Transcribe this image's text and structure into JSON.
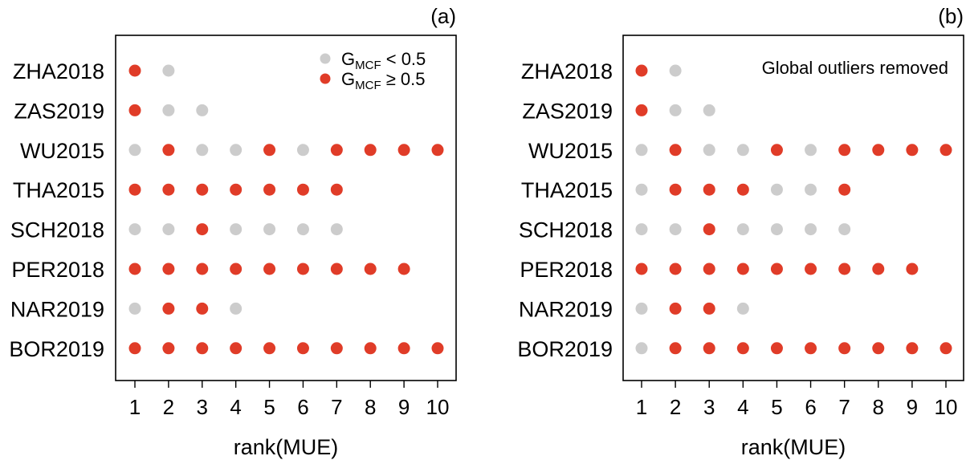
{
  "chart_data": [
    {
      "type": "scatter",
      "panel_label": "(a)",
      "xlabel": "rank(MUE)",
      "x_ticks": [
        "1",
        "2",
        "3",
        "4",
        "5",
        "6",
        "7",
        "8",
        "9",
        "10"
      ],
      "xlim": [
        1,
        10
      ],
      "categories": [
        "ZHA2018",
        "ZAS2019",
        "WU2015",
        "THA2015",
        "SCH2018",
        "PER2018",
        "NAR2019",
        "BOR2019"
      ],
      "legend": {
        "placement": "top-right",
        "items": [
          {
            "base": "G",
            "sub": "MCF",
            "rel": " < 0.5",
            "color": "#cccccc"
          },
          {
            "base": "G",
            "sub": "MCF",
            "rel": " ≥ 0.5",
            "color": "#e03c28"
          }
        ]
      },
      "note": "",
      "rows": [
        {
          "label": "ZHA2018",
          "points": [
            1,
            0
          ]
        },
        {
          "label": "ZAS2019",
          "points": [
            1,
            0,
            0
          ]
        },
        {
          "label": "WU2015",
          "points": [
            0,
            1,
            0,
            0,
            1,
            0,
            1,
            1,
            1,
            1
          ]
        },
        {
          "label": "THA2015",
          "points": [
            1,
            1,
            1,
            1,
            1,
            1,
            1
          ]
        },
        {
          "label": "SCH2018",
          "points": [
            0,
            0,
            1,
            0,
            0,
            0,
            0
          ]
        },
        {
          "label": "PER2018",
          "points": [
            1,
            1,
            1,
            1,
            1,
            1,
            1,
            1,
            1
          ]
        },
        {
          "label": "NAR2019",
          "points": [
            0,
            1,
            1,
            0
          ]
        },
        {
          "label": "BOR2019",
          "points": [
            1,
            1,
            1,
            1,
            1,
            1,
            1,
            1,
            1,
            1
          ]
        }
      ]
    },
    {
      "type": "scatter",
      "panel_label": "(b)",
      "xlabel": "rank(MUE)",
      "x_ticks": [
        "1",
        "2",
        "3",
        "4",
        "5",
        "6",
        "7",
        "8",
        "9",
        "10"
      ],
      "xlim": [
        1,
        10
      ],
      "categories": [
        "ZHA2018",
        "ZAS2019",
        "WU2015",
        "THA2015",
        "SCH2018",
        "PER2018",
        "NAR2019",
        "BOR2019"
      ],
      "legend": null,
      "note": "Global outliers removed",
      "rows": [
        {
          "label": "ZHA2018",
          "points": [
            1,
            0
          ]
        },
        {
          "label": "ZAS2019",
          "points": [
            1,
            0,
            0
          ]
        },
        {
          "label": "WU2015",
          "points": [
            0,
            1,
            0,
            0,
            1,
            0,
            1,
            1,
            1,
            1
          ]
        },
        {
          "label": "THA2015",
          "points": [
            0,
            1,
            1,
            1,
            0,
            0,
            1
          ]
        },
        {
          "label": "SCH2018",
          "points": [
            0,
            0,
            1,
            0,
            0,
            0,
            0
          ]
        },
        {
          "label": "PER2018",
          "points": [
            1,
            1,
            1,
            1,
            1,
            1,
            1,
            1,
            1
          ]
        },
        {
          "label": "NAR2019",
          "points": [
            0,
            1,
            1,
            0
          ]
        },
        {
          "label": "BOR2019",
          "points": [
            0,
            1,
            1,
            1,
            1,
            1,
            1,
            1,
            1,
            1
          ]
        }
      ]
    }
  ],
  "colors": {
    "low": "#cccccc",
    "high": "#e03c28",
    "frame": "#000000"
  }
}
